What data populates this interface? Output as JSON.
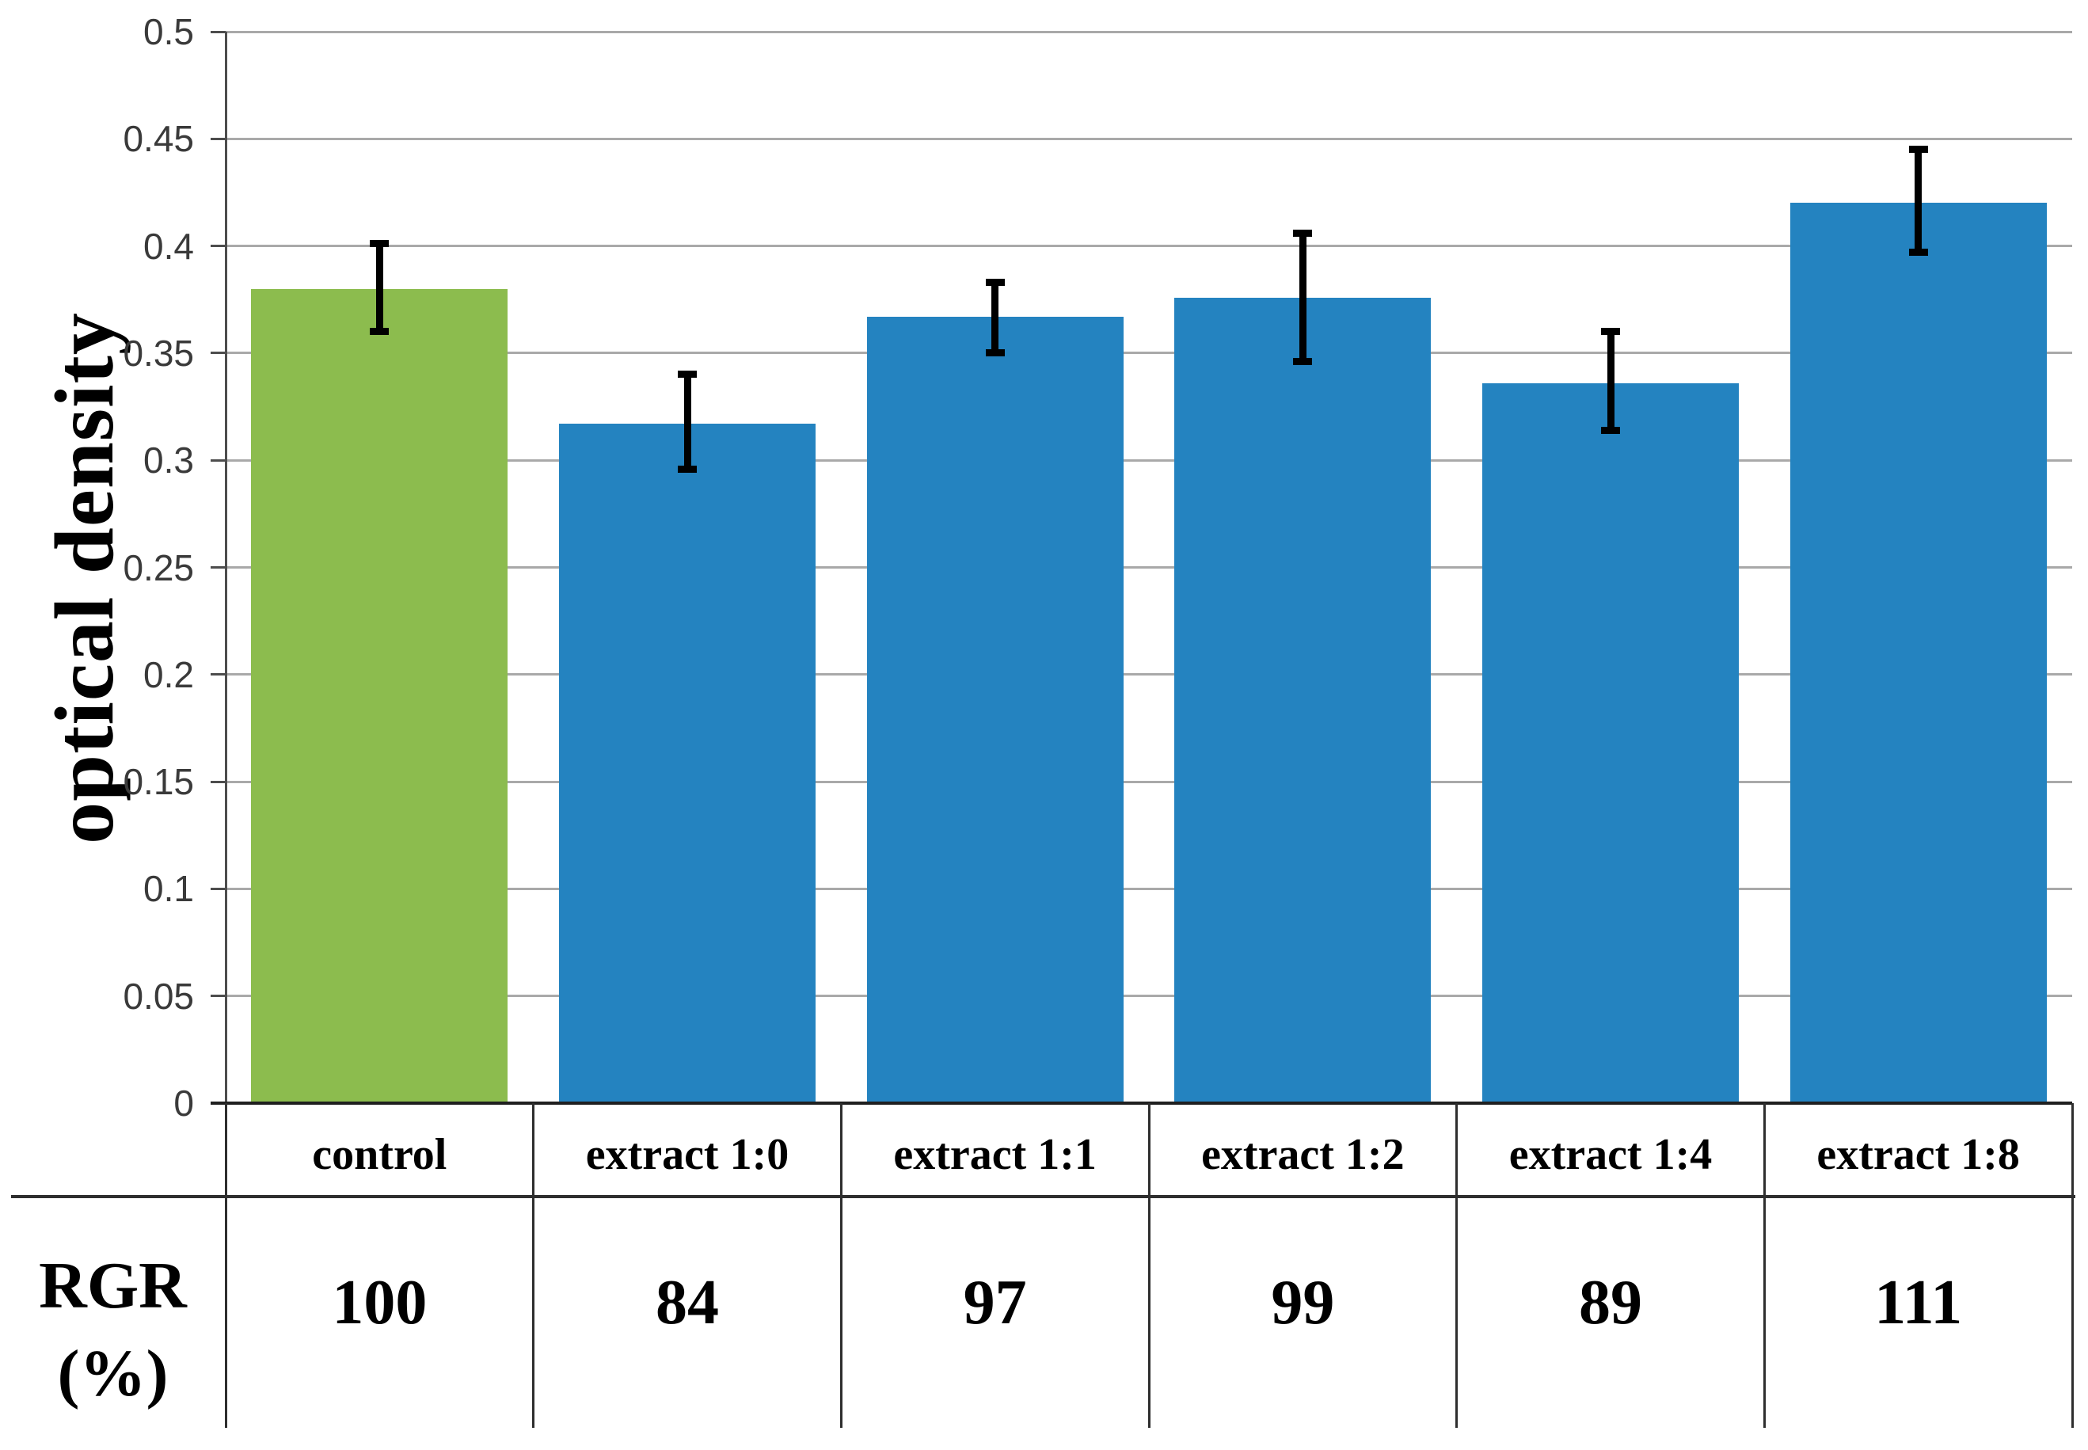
{
  "figure": {
    "background": "#ffffff"
  },
  "chart_data": {
    "type": "bar",
    "title": "",
    "xlabel": "",
    "ylabel": "optical density",
    "ylim": [
      0,
      0.5
    ],
    "ytick_step": 0.05,
    "ytick_labels": [
      "0",
      "0.05",
      "0.1",
      "0.15",
      "0.2",
      "0.25",
      "0.3",
      "0.35",
      "0.4",
      "0.45",
      "0.5"
    ],
    "grid": true,
    "legend": "none",
    "categories": [
      "control",
      "extract 1:0",
      "extract 1:1",
      "extract 1:2",
      "extract 1:4",
      "extract 1:8"
    ],
    "values": [
      0.38,
      0.317,
      0.367,
      0.376,
      0.336,
      0.42
    ],
    "error_high": [
      0.401,
      0.34,
      0.383,
      0.406,
      0.36,
      0.445
    ],
    "error_low": [
      0.36,
      0.296,
      0.35,
      0.346,
      0.314,
      0.397
    ],
    "bar_colors": [
      "#8CBC4E",
      "#2483C0",
      "#2483C0",
      "#2483C0",
      "#2483C0",
      "#2483C0"
    ],
    "colors": {
      "control_bar": "#8CBC4E",
      "extract_bar": "#2483C0",
      "gridline": "#A9A9A9",
      "error_bar": "#000000"
    },
    "table": {
      "header_line1": "RGR",
      "header_line2": "(%)",
      "row_values": [
        "100",
        "84",
        "97",
        "99",
        "89",
        "111"
      ]
    }
  }
}
